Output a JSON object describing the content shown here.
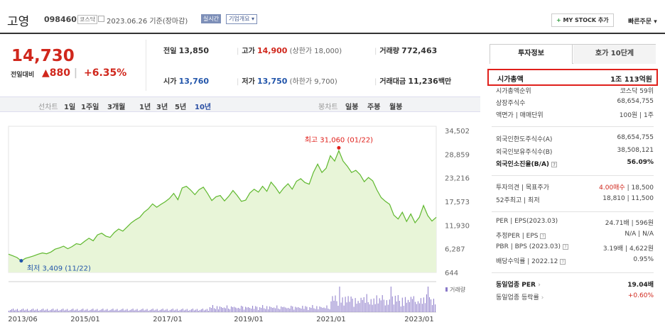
{
  "header": {
    "name": "고영",
    "code": "098460",
    "market": "코스닥",
    "date": "2023.06.26 기준(장마감)",
    "realtime": "실시간",
    "company_info": "기업개요",
    "mystock": "MY STOCK 추가",
    "mystock_plus": "+",
    "quick_order": "빠른주문"
  },
  "price": {
    "current": "14,730",
    "change_label": "전일대비",
    "change": "▲880",
    "change_sep": "|",
    "change_pct": "+6.35%",
    "prev_label": "전일",
    "prev_value": "13,850",
    "high_label": "고가",
    "high_value": "14,900",
    "high_limit": "(상한가 18,000)",
    "volume_label": "거래량",
    "volume_value": "772,463",
    "open_label": "시가",
    "open_value": "13,760",
    "low_label": "저가",
    "low_value": "13,750",
    "low_limit": "(하한가 9,700)",
    "amount_label": "거래대금",
    "amount_value": "11,236",
    "amount_unit": "백만"
  },
  "period": {
    "line_label": "선차트",
    "items": [
      "1일",
      "1주일",
      "3개월",
      "1년",
      "3년",
      "5년",
      "10년"
    ],
    "active": "10년",
    "candle_label": "봉차트",
    "candle_items": [
      "일봉",
      "주봉",
      "월봉"
    ]
  },
  "chart_data": {
    "type": "area",
    "title": "",
    "xlabel": "",
    "ylabel": "",
    "x_ticks": [
      "2013/06",
      "2015/01",
      "2017/01",
      "2019/01",
      "2021/01",
      "2023/01"
    ],
    "y_ticks": [
      "34,502",
      "28,859",
      "23,216",
      "17,573",
      "11,930",
      "6,287",
      "644"
    ],
    "ylim": [
      644,
      34502
    ],
    "high_annotation": "최고 31,060 (01/22)",
    "low_annotation": "최저 3,409 (11/22)",
    "volume_legend": "거래량",
    "colors": {
      "line": "#5fb82e",
      "fill": "#e8f5d8",
      "volume": "#8a79c9",
      "high": "#e0201b",
      "low": "#2255aa"
    },
    "series": [
      {
        "values": [
          5000,
          4600,
          4200,
          3409,
          4000,
          4300,
          4600,
          5000,
          5300,
          5100,
          5500,
          6200,
          6500,
          6900,
          6300,
          6800,
          7500,
          7300,
          8100,
          8800,
          8200,
          9600,
          10000,
          9300,
          9000,
          10200,
          11000,
          10500,
          11500,
          12500,
          13200,
          13800,
          15000,
          15800,
          17000,
          16200,
          16900,
          17500,
          18300,
          19500,
          18000,
          20800,
          21200,
          20300,
          19200,
          20400,
          21000,
          19500,
          17800,
          18700,
          19000,
          17700,
          18800,
          20200,
          19000,
          17600,
          17900,
          19600,
          20500,
          19800,
          21200,
          20000,
          22200,
          21000,
          19500,
          20800,
          21800,
          20500,
          22400,
          23000,
          22100,
          21700,
          24500,
          26500,
          24500,
          25500,
          28500,
          27200,
          29700,
          27200,
          26000,
          24500,
          25000,
          24000,
          22300,
          23300,
          22500,
          20300,
          18500,
          17600,
          16900,
          14300,
          13400,
          15000,
          12800,
          14600,
          12500,
          13800,
          16600,
          14200,
          12900,
          13800
        ]
      }
    ]
  },
  "side": {
    "tab_invest": "투자정보",
    "tab_order": "호가 10단계",
    "market_cap_label": "시가총액",
    "market_cap_value": "1조 113억원",
    "rows": [
      {
        "k": "시가총액순위",
        "v": "코스닥 59위"
      },
      {
        "k": "상장주식수",
        "v": "68,654,755"
      },
      {
        "k": "액면가 | 매매단위",
        "v": "100원 | 1주"
      },
      {
        "k": "외국인한도주식수(A)",
        "v": "68,654,755"
      },
      {
        "k": "외국인보유주식수(B)",
        "v": "38,508,121"
      },
      {
        "k": "외국인소진율(B/A)",
        "v": "56.09%"
      },
      {
        "k": "투자의견 | 목표주가",
        "v_red": "4.00매수",
        "v": "| 18,500"
      },
      {
        "k": "52주최고 | 최저",
        "v": "18,810 | 11,500"
      },
      {
        "k": "PER | EPS(2023.03)",
        "v": "24.71배 | 596원"
      },
      {
        "k": "추정PER | EPS",
        "v": "N/A | N/A"
      },
      {
        "k": "PBR | BPS (2023.03)",
        "v": "3.19배 | 4,622원"
      },
      {
        "k": "배당수익률 | 2022.12",
        "v": "0.95%"
      },
      {
        "k": "동일업종 PER",
        "v": "19.04배"
      },
      {
        "k": "동일업종 등락률",
        "v": "+0.60%"
      }
    ]
  }
}
